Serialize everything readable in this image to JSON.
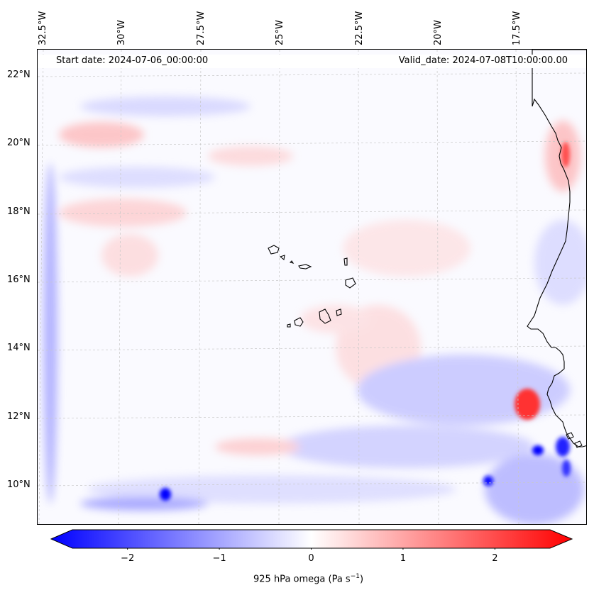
{
  "header": {
    "start_date": "Start date: 2024-07-06_00:00:00",
    "valid_date": "Valid_date: 2024-07-08T10:00:00.00"
  },
  "map": {
    "lon_labels": [
      "32.5°W",
      "30°W",
      "27.5°W",
      "25°W",
      "22.5°W",
      "20°W",
      "17.5°W"
    ],
    "lat_labels": [
      "22°N",
      "20°N",
      "18°N",
      "16°N",
      "14°N",
      "12°N",
      "10°N"
    ]
  },
  "colorbar": {
    "ticks": [
      "−2",
      "−1",
      "0",
      "1",
      "2"
    ],
    "tick_values": [
      -2,
      -1,
      0,
      1,
      2
    ],
    "range": [
      -2.6,
      2.6
    ],
    "label_main": "925 hPa omega (Pa s",
    "label_sup": "−1",
    "label_end": ")",
    "colors": {
      "negative": "#0000ff",
      "zero": "#ffffff",
      "positive": "#ff0000"
    }
  }
}
